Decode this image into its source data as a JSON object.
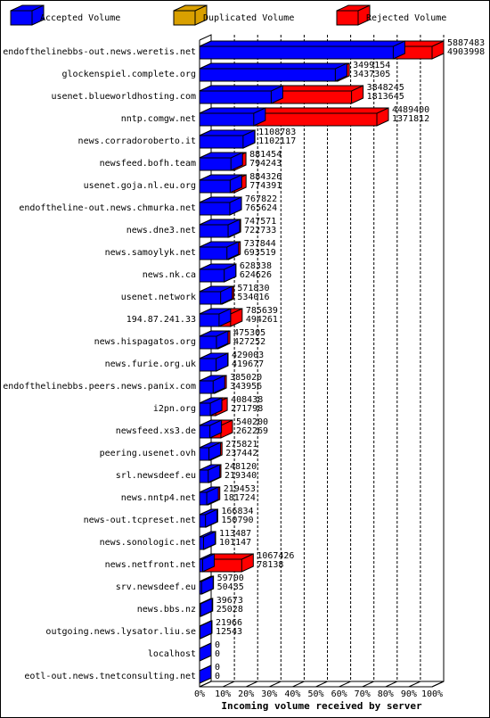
{
  "chart_data": {
    "type": "bar",
    "orientation": "horizontal",
    "xlabel": "Incoming volume received by server",
    "categories": [
      "endofthelinebbs-out.news.weretis.net",
      "glockenspiel.complete.org",
      "usenet.blueworldhosting.com",
      "nntp.comgw.net",
      "news.corradoroberto.it",
      "newsfeed.bofh.team",
      "usenet.goja.nl.eu.org",
      "endoftheline-out.news.chmurka.net",
      "news.dne3.net",
      "news.samoylyk.net",
      "news.nk.ca",
      "usenet.network",
      "194.87.241.33",
      "news.hispagatos.org",
      "news.furie.org.uk",
      "endofthelinebbs.peers.news.panix.com",
      "i2pn.org",
      "newsfeed.xs3.de",
      "peering.usenet.ovh",
      "srl.newsdeef.eu",
      "news.nntp4.net",
      "news-out.tcpreset.net",
      "news.sonologic.net",
      "news.netfront.net",
      "srv.newsdeef.eu",
      "news.bbs.nz",
      "outgoing.news.lysator.liu.se",
      "localhost",
      "eotl-out.news.tnetconsulting.net"
    ],
    "series": [
      {
        "name": "Accepted Volume",
        "color": "#0000ff",
        "values": [
          4903998,
          3437305,
          1813645,
          1371812,
          1102117,
          794243,
          774391,
          765624,
          722733,
          693519,
          624626,
          534016,
          494261,
          427252,
          419677,
          343956,
          271798,
          262269,
          237442,
          219340,
          181724,
          150790,
          101147,
          78138,
          50435,
          25028,
          12543,
          0,
          0
        ]
      },
      {
        "name": "Duplicated Volume",
        "color": "#d9a000",
        "values": [
          null,
          null,
          null,
          null,
          null,
          null,
          null,
          767822,
          null,
          null,
          null,
          null,
          null,
          null,
          429003,
          null,
          null,
          null,
          null,
          null,
          null,
          null,
          null,
          null,
          59700,
          null,
          21966,
          null,
          null
        ]
      },
      {
        "name": "Rejected Volume",
        "color": "#ff0000",
        "values": [
          5887483,
          3499154,
          3848245,
          4489400,
          1108783,
          881454,
          884326,
          null,
          747571,
          737844,
          628338,
          571830,
          785639,
          475305,
          null,
          385020,
          408438,
          540200,
          275821,
          248120,
          219453,
          166834,
          113487,
          1067426,
          null,
          39673,
          null,
          0,
          0
        ]
      }
    ],
    "xlim": [
      0,
      5887483
    ],
    "xticks": [
      {
        "value": 0,
        "label": "0%"
      },
      {
        "value": 588748.3,
        "label": "10%"
      },
      {
        "value": 1177496.6,
        "label": "20%"
      },
      {
        "value": 1766244.9,
        "label": "30%"
      },
      {
        "value": 2354993.2,
        "label": "40%"
      },
      {
        "value": 2943741.5,
        "label": "50%"
      },
      {
        "value": 3532489.8,
        "label": "60%"
      },
      {
        "value": 4121238.1,
        "label": "70%"
      },
      {
        "value": 4709986.4,
        "label": "80%"
      },
      {
        "value": 5298734.7,
        "label": "90%"
      },
      {
        "value": 5887483,
        "label": "100%"
      }
    ],
    "grid": true
  }
}
